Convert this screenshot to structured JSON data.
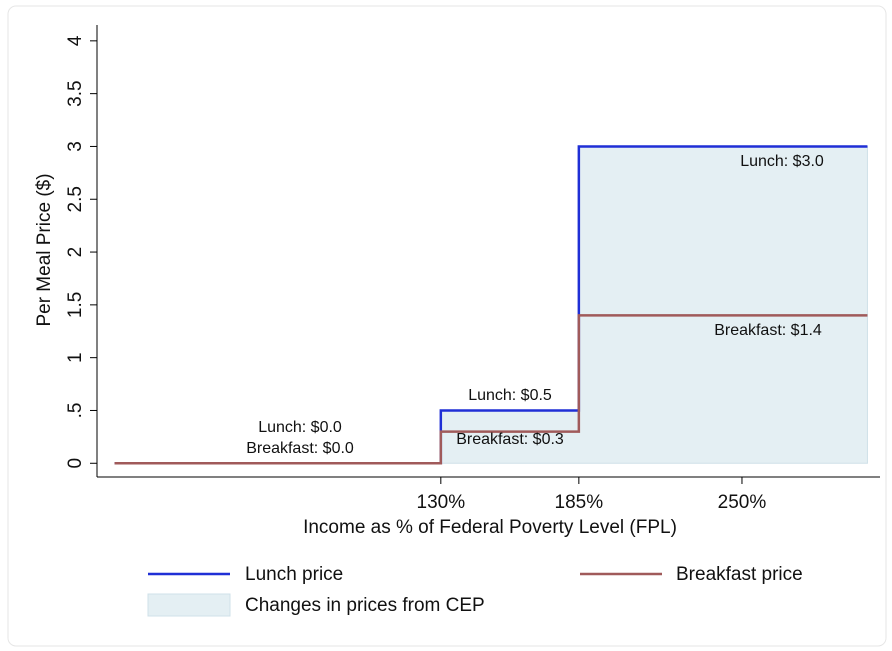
{
  "chart_data": {
    "type": "step",
    "xlabel": "Income as % of Federal Poverty Level (FPL)",
    "ylabel": "Per Meal Price ($)",
    "xlim": [
      -7,
      305
    ],
    "ylim": [
      -0.13,
      4.15
    ],
    "xticks": [
      {
        "value": 130,
        "label": "130%"
      },
      {
        "value": 185,
        "label": "185%"
      },
      {
        "value": 250,
        "label": "250%"
      }
    ],
    "yticks": [
      0,
      {
        "value": 0.5,
        "label": ".5"
      },
      1,
      1.5,
      2,
      2.5,
      3,
      3.5,
      4
    ],
    "area": {
      "name": "Changes in prices from CEP",
      "color": "#e4eff3",
      "x": [
        130,
        185,
        185,
        300
      ],
      "values": [
        0.5,
        0.5,
        3,
        3
      ]
    },
    "series": [
      {
        "name": "Lunch price",
        "color": "#1f2fd6",
        "x": [
          0,
          130,
          130,
          185,
          185,
          300
        ],
        "values": [
          0,
          0,
          0.5,
          0.5,
          3,
          3
        ]
      },
      {
        "name": "Breakfast price",
        "color": "#a05a5a",
        "x": [
          0,
          130,
          130,
          185,
          185,
          300
        ],
        "values": [
          0,
          0,
          0.3,
          0.3,
          1.4,
          1.4
        ]
      }
    ],
    "annotations": [
      "Lunch: $0.0",
      "Breakfast: $0.0",
      "Lunch: $0.5",
      "Breakfast: $0.3",
      "Lunch: $3.0",
      "Breakfast: $1.4"
    ]
  }
}
